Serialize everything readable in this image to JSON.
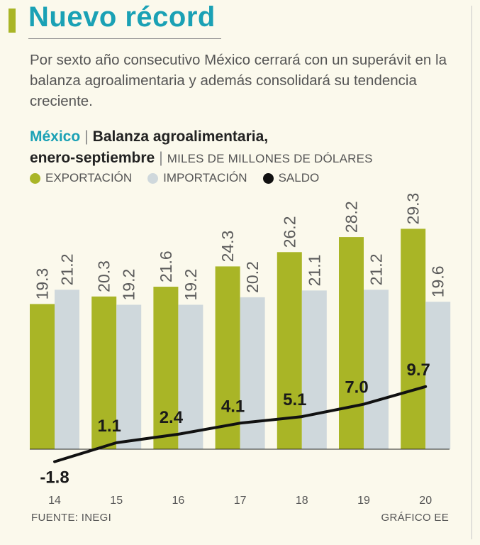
{
  "header": {
    "title": "Nuevo récord",
    "intro": "Por sexto año consecutivo México cerrará con un superávit en la balanza agroalimentaria y además consolidará su tendencia creciente."
  },
  "chart_header": {
    "country": "México",
    "title_line1": "Balanza agroalimentaria,",
    "title_line2": "enero-septiembre",
    "units": "MILES DE MILLONES DE DÓLARES"
  },
  "footer": {
    "source": "FUENTE: INEGI",
    "credit": "GRÁFICO EE"
  },
  "colors": {
    "export": "#a9b526",
    "import": "#cfd8dc",
    "saldo": "#111111",
    "title": "#1aa1b5",
    "background": "#fbf9ec"
  },
  "chart_data": {
    "type": "bar",
    "title": "Balanza agroalimentaria, enero-septiembre",
    "ylabel": "Miles de millones de dólares",
    "categories": [
      "14",
      "15",
      "16",
      "17",
      "18",
      "19",
      "20"
    ],
    "series": [
      {
        "name": "EXPORTACIÓN",
        "type": "bar",
        "values": [
          19.3,
          20.3,
          21.6,
          24.3,
          26.2,
          28.2,
          29.3
        ]
      },
      {
        "name": "IMPORTACIÓN",
        "type": "bar",
        "values": [
          21.2,
          19.2,
          19.2,
          20.2,
          21.1,
          21.2,
          19.6
        ]
      },
      {
        "name": "SALDO",
        "type": "line",
        "values": [
          -1.8,
          1.1,
          2.4,
          4.1,
          5.1,
          7.0,
          9.7
        ]
      }
    ],
    "value_labels": {
      "EXPORTACIÓN": [
        "19.3",
        "20.3",
        "21.6",
        "24.3",
        "26.2",
        "28.2",
        "29.3"
      ],
      "IMPORTACIÓN": [
        "21.2",
        "19.2",
        "19.2",
        "20.2",
        "21.1",
        "21.2",
        "19.6"
      ],
      "SALDO": [
        "-1.8",
        "1.1",
        "2.4",
        "4.1",
        "5.1",
        "7.0",
        "9.7"
      ]
    },
    "legend": "top-left",
    "grid": false
  }
}
